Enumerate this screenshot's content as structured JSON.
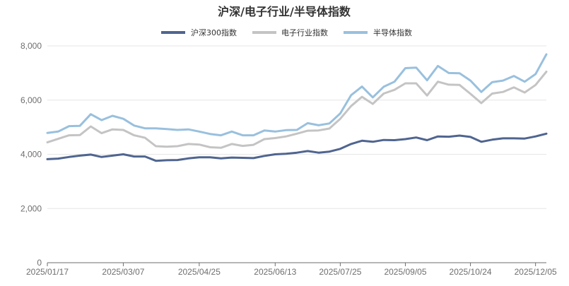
{
  "chart_data": {
    "type": "line",
    "title": "沪深/电子行业/半导体指数",
    "xlabel": "",
    "ylabel": "",
    "ylim": [
      0,
      8000
    ],
    "yticks": [
      0,
      2000,
      4000,
      6000,
      8000
    ],
    "ytick_labels": [
      "0",
      "2,000",
      "4,000",
      "6,000",
      "8,000"
    ],
    "xtick_labels": [
      "2025/01/17",
      "2025/03/07",
      "2025/04/25",
      "2025/06/13",
      "2025/07/25",
      "2025/09/05",
      "2025/10/24",
      "2025/12/05"
    ],
    "xtick_indices": [
      0,
      7,
      14,
      21,
      27,
      33,
      39,
      45
    ],
    "grid": true,
    "legend": "top-center",
    "series": [
      {
        "name": "沪深300指数",
        "color": "#4f6590",
        "values": [
          3820,
          3840,
          3900,
          3950,
          3990,
          3900,
          3950,
          4000,
          3920,
          3920,
          3760,
          3780,
          3790,
          3850,
          3890,
          3890,
          3850,
          3880,
          3870,
          3860,
          3940,
          4000,
          4020,
          4060,
          4120,
          4060,
          4100,
          4200,
          4380,
          4500,
          4460,
          4530,
          4520,
          4560,
          4620,
          4520,
          4660,
          4650,
          4690,
          4640,
          4460,
          4540,
          4590,
          4590,
          4580,
          4660,
          4760
        ]
      },
      {
        "name": "电子行业指数",
        "color": "#c4c4c4",
        "values": [
          4440,
          4570,
          4700,
          4710,
          5030,
          4780,
          4920,
          4900,
          4700,
          4610,
          4300,
          4280,
          4300,
          4380,
          4360,
          4260,
          4240,
          4380,
          4310,
          4350,
          4560,
          4600,
          4660,
          4760,
          4870,
          4880,
          4950,
          5310,
          5780,
          6120,
          5860,
          6240,
          6380,
          6620,
          6620,
          6170,
          6680,
          6570,
          6560,
          6230,
          5890,
          6240,
          6300,
          6470,
          6280,
          6560,
          7050
        ]
      },
      {
        "name": "半导体指数",
        "color": "#99c0de",
        "values": [
          4790,
          4840,
          5040,
          5050,
          5480,
          5260,
          5420,
          5310,
          5060,
          4960,
          4960,
          4930,
          4900,
          4920,
          4840,
          4750,
          4700,
          4840,
          4700,
          4700,
          4880,
          4840,
          4890,
          4900,
          5150,
          5070,
          5140,
          5510,
          6180,
          6500,
          6100,
          6490,
          6680,
          7180,
          7200,
          6730,
          7260,
          7000,
          6990,
          6720,
          6300,
          6660,
          6720,
          6890,
          6680,
          6960,
          7690
        ]
      }
    ]
  }
}
